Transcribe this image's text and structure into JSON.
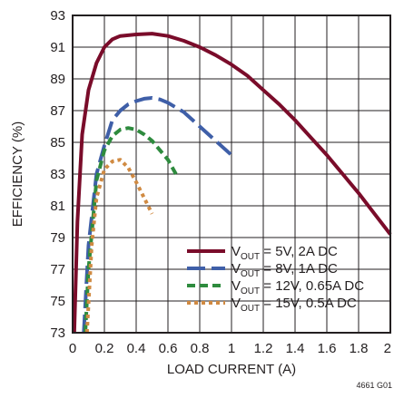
{
  "chart_data": {
    "type": "line",
    "xlabel": "LOAD CURRENT (A)",
    "ylabel": "EFFICIENCY (%)",
    "xlim": [
      0,
      2
    ],
    "ylim": [
      73,
      93
    ],
    "x_ticks": [
      "0",
      "0.2",
      "0.4",
      "0.6",
      "0.8",
      "1",
      "1.2",
      "1.4",
      "1.6",
      "1.8",
      "2"
    ],
    "y_ticks": [
      "73",
      "75",
      "77",
      "79",
      "81",
      "83",
      "85",
      "87",
      "89",
      "91",
      "93"
    ],
    "grid": true,
    "legend_position": "bottom-right",
    "figure_id": "4661 G01",
    "series": [
      {
        "name": "VOUT = 5V, 2A DC",
        "legend": {
          "main": "V",
          "sub": "OUT",
          "rest": " = 5V, 2A DC"
        },
        "color": "#7a0c2a",
        "dash": "solid",
        "x": [
          0.01,
          0.03,
          0.06,
          0.1,
          0.15,
          0.2,
          0.25,
          0.3,
          0.4,
          0.5,
          0.6,
          0.7,
          0.8,
          0.9,
          1.0,
          1.1,
          1.2,
          1.3,
          1.4,
          1.5,
          1.6,
          1.7,
          1.8,
          1.9,
          2.0
        ],
        "y": [
          73.0,
          80.0,
          85.5,
          88.3,
          90.0,
          91.0,
          91.5,
          91.7,
          91.8,
          91.85,
          91.7,
          91.4,
          91.0,
          90.5,
          89.9,
          89.2,
          88.3,
          87.4,
          86.4,
          85.3,
          84.2,
          83.0,
          81.8,
          80.5,
          79.2
        ]
      },
      {
        "name": "VOUT = 8V, 1A DC",
        "legend": {
          "main": "V",
          "sub": "OUT",
          "rest": " = 8V, 1A DC"
        },
        "color": "#3f5fa8",
        "dash": "long-dash",
        "x": [
          0.07,
          0.1,
          0.15,
          0.2,
          0.25,
          0.3,
          0.35,
          0.4,
          0.45,
          0.5,
          0.55,
          0.6,
          0.7,
          0.8,
          0.9,
          1.0
        ],
        "y": [
          73.0,
          78.5,
          83.0,
          84.8,
          86.4,
          87.0,
          87.4,
          87.6,
          87.75,
          87.8,
          87.7,
          87.5,
          86.9,
          86.0,
          85.1,
          84.2
        ]
      },
      {
        "name": "VOUT = 12V, 0.65A DC",
        "legend": {
          "main": "V",
          "sub": "OUT",
          "rest": " = 12V, 0.65A DC"
        },
        "color": "#2e8b3e",
        "dash": "dash",
        "x": [
          0.08,
          0.1,
          0.15,
          0.2,
          0.25,
          0.3,
          0.35,
          0.4,
          0.45,
          0.5,
          0.55,
          0.6,
          0.65
        ],
        "y": [
          73.0,
          77.0,
          82.6,
          84.5,
          85.4,
          85.8,
          85.9,
          85.8,
          85.5,
          85.1,
          84.5,
          83.9,
          83.0
        ]
      },
      {
        "name": "VOUT = 15V, 0.5A DC",
        "legend": {
          "main": "V",
          "sub": "OUT",
          "rest": " = 15V, 0.5A DC"
        },
        "color": "#d08a42",
        "dash": "dot",
        "x": [
          0.09,
          0.12,
          0.15,
          0.2,
          0.25,
          0.3,
          0.35,
          0.4,
          0.45,
          0.5
        ],
        "y": [
          73.0,
          78.5,
          81.5,
          83.3,
          83.8,
          83.9,
          83.4,
          82.5,
          81.5,
          80.5
        ]
      }
    ]
  }
}
